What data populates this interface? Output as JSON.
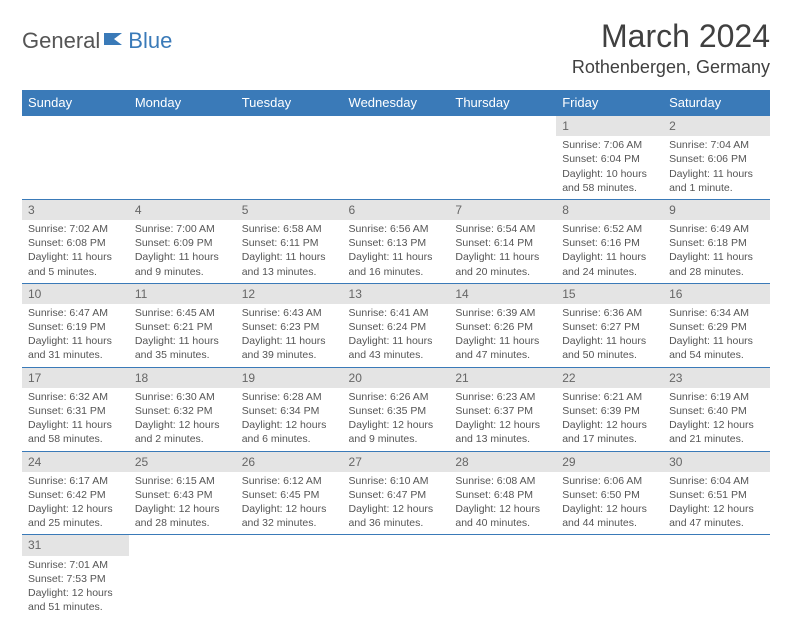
{
  "logo": {
    "part1": "General",
    "part2": "Blue"
  },
  "title": "March 2024",
  "location": "Rothenbergen, Germany",
  "colors": {
    "header_bg": "#3a7ab8",
    "header_text": "#ffffff",
    "daynum_bg": "#e4e4e4",
    "border": "#3a7ab8",
    "text": "#555555"
  },
  "day_headers": [
    "Sunday",
    "Monday",
    "Tuesday",
    "Wednesday",
    "Thursday",
    "Friday",
    "Saturday"
  ],
  "weeks": [
    [
      null,
      null,
      null,
      null,
      null,
      {
        "n": "1",
        "sr": "Sunrise: 7:06 AM",
        "ss": "Sunset: 6:04 PM",
        "dl": "Daylight: 10 hours and 58 minutes."
      },
      {
        "n": "2",
        "sr": "Sunrise: 7:04 AM",
        "ss": "Sunset: 6:06 PM",
        "dl": "Daylight: 11 hours and 1 minute."
      }
    ],
    [
      {
        "n": "3",
        "sr": "Sunrise: 7:02 AM",
        "ss": "Sunset: 6:08 PM",
        "dl": "Daylight: 11 hours and 5 minutes."
      },
      {
        "n": "4",
        "sr": "Sunrise: 7:00 AM",
        "ss": "Sunset: 6:09 PM",
        "dl": "Daylight: 11 hours and 9 minutes."
      },
      {
        "n": "5",
        "sr": "Sunrise: 6:58 AM",
        "ss": "Sunset: 6:11 PM",
        "dl": "Daylight: 11 hours and 13 minutes."
      },
      {
        "n": "6",
        "sr": "Sunrise: 6:56 AM",
        "ss": "Sunset: 6:13 PM",
        "dl": "Daylight: 11 hours and 16 minutes."
      },
      {
        "n": "7",
        "sr": "Sunrise: 6:54 AM",
        "ss": "Sunset: 6:14 PM",
        "dl": "Daylight: 11 hours and 20 minutes."
      },
      {
        "n": "8",
        "sr": "Sunrise: 6:52 AM",
        "ss": "Sunset: 6:16 PM",
        "dl": "Daylight: 11 hours and 24 minutes."
      },
      {
        "n": "9",
        "sr": "Sunrise: 6:49 AM",
        "ss": "Sunset: 6:18 PM",
        "dl": "Daylight: 11 hours and 28 minutes."
      }
    ],
    [
      {
        "n": "10",
        "sr": "Sunrise: 6:47 AM",
        "ss": "Sunset: 6:19 PM",
        "dl": "Daylight: 11 hours and 31 minutes."
      },
      {
        "n": "11",
        "sr": "Sunrise: 6:45 AM",
        "ss": "Sunset: 6:21 PM",
        "dl": "Daylight: 11 hours and 35 minutes."
      },
      {
        "n": "12",
        "sr": "Sunrise: 6:43 AM",
        "ss": "Sunset: 6:23 PM",
        "dl": "Daylight: 11 hours and 39 minutes."
      },
      {
        "n": "13",
        "sr": "Sunrise: 6:41 AM",
        "ss": "Sunset: 6:24 PM",
        "dl": "Daylight: 11 hours and 43 minutes."
      },
      {
        "n": "14",
        "sr": "Sunrise: 6:39 AM",
        "ss": "Sunset: 6:26 PM",
        "dl": "Daylight: 11 hours and 47 minutes."
      },
      {
        "n": "15",
        "sr": "Sunrise: 6:36 AM",
        "ss": "Sunset: 6:27 PM",
        "dl": "Daylight: 11 hours and 50 minutes."
      },
      {
        "n": "16",
        "sr": "Sunrise: 6:34 AM",
        "ss": "Sunset: 6:29 PM",
        "dl": "Daylight: 11 hours and 54 minutes."
      }
    ],
    [
      {
        "n": "17",
        "sr": "Sunrise: 6:32 AM",
        "ss": "Sunset: 6:31 PM",
        "dl": "Daylight: 11 hours and 58 minutes."
      },
      {
        "n": "18",
        "sr": "Sunrise: 6:30 AM",
        "ss": "Sunset: 6:32 PM",
        "dl": "Daylight: 12 hours and 2 minutes."
      },
      {
        "n": "19",
        "sr": "Sunrise: 6:28 AM",
        "ss": "Sunset: 6:34 PM",
        "dl": "Daylight: 12 hours and 6 minutes."
      },
      {
        "n": "20",
        "sr": "Sunrise: 6:26 AM",
        "ss": "Sunset: 6:35 PM",
        "dl": "Daylight: 12 hours and 9 minutes."
      },
      {
        "n": "21",
        "sr": "Sunrise: 6:23 AM",
        "ss": "Sunset: 6:37 PM",
        "dl": "Daylight: 12 hours and 13 minutes."
      },
      {
        "n": "22",
        "sr": "Sunrise: 6:21 AM",
        "ss": "Sunset: 6:39 PM",
        "dl": "Daylight: 12 hours and 17 minutes."
      },
      {
        "n": "23",
        "sr": "Sunrise: 6:19 AM",
        "ss": "Sunset: 6:40 PM",
        "dl": "Daylight: 12 hours and 21 minutes."
      }
    ],
    [
      {
        "n": "24",
        "sr": "Sunrise: 6:17 AM",
        "ss": "Sunset: 6:42 PM",
        "dl": "Daylight: 12 hours and 25 minutes."
      },
      {
        "n": "25",
        "sr": "Sunrise: 6:15 AM",
        "ss": "Sunset: 6:43 PM",
        "dl": "Daylight: 12 hours and 28 minutes."
      },
      {
        "n": "26",
        "sr": "Sunrise: 6:12 AM",
        "ss": "Sunset: 6:45 PM",
        "dl": "Daylight: 12 hours and 32 minutes."
      },
      {
        "n": "27",
        "sr": "Sunrise: 6:10 AM",
        "ss": "Sunset: 6:47 PM",
        "dl": "Daylight: 12 hours and 36 minutes."
      },
      {
        "n": "28",
        "sr": "Sunrise: 6:08 AM",
        "ss": "Sunset: 6:48 PM",
        "dl": "Daylight: 12 hours and 40 minutes."
      },
      {
        "n": "29",
        "sr": "Sunrise: 6:06 AM",
        "ss": "Sunset: 6:50 PM",
        "dl": "Daylight: 12 hours and 44 minutes."
      },
      {
        "n": "30",
        "sr": "Sunrise: 6:04 AM",
        "ss": "Sunset: 6:51 PM",
        "dl": "Daylight: 12 hours and 47 minutes."
      }
    ],
    [
      {
        "n": "31",
        "sr": "Sunrise: 7:01 AM",
        "ss": "Sunset: 7:53 PM",
        "dl": "Daylight: 12 hours and 51 minutes."
      },
      null,
      null,
      null,
      null,
      null,
      null
    ]
  ]
}
